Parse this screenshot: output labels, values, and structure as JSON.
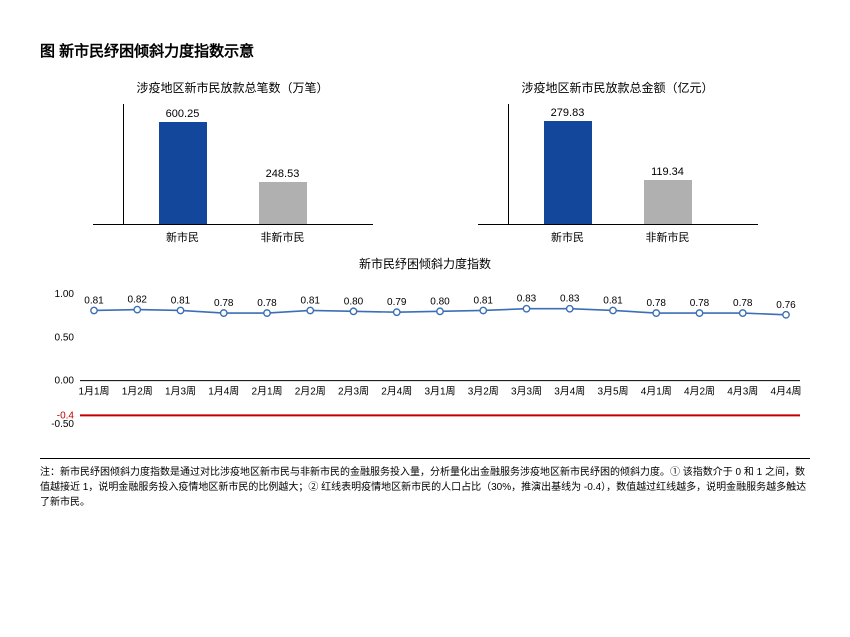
{
  "title": "图 新市民纾困倾斜力度指数示意",
  "barCharts": {
    "left": {
      "title": "涉疫地区新市民放款总笔数（万笔）",
      "max": 650,
      "bars": [
        {
          "label": "新市民",
          "value": 600.25,
          "color": "#12479c"
        },
        {
          "label": "非新市民",
          "value": 248.53,
          "color": "#b0b0b0"
        }
      ]
    },
    "right": {
      "title": "涉疫地区新市民放款总金额（亿元）",
      "max": 300,
      "bars": [
        {
          "label": "新市民",
          "value": 279.83,
          "color": "#12479c"
        },
        {
          "label": "非新市民",
          "value": 119.34,
          "color": "#b0b0b0"
        }
      ]
    }
  },
  "lineChart": {
    "title": "新市民纾困倾斜力度指数",
    "ymin": -0.5,
    "ymax": 1.0,
    "yticks": [
      -0.5,
      0.0,
      0.5,
      1.0
    ],
    "ytickLabels": [
      "-0.50",
      "0.00",
      "0.50",
      "1.00"
    ],
    "baseline": -0.4,
    "baselineColor": "#c00000",
    "lineColor": "#3a6fb7",
    "markerColor": "#3a6fb7",
    "markerFill": "#ffffff",
    "axisColor": "#000000",
    "valueFontSize": 10,
    "axisFontSize": 10,
    "categories": [
      "1月1周",
      "1月2周",
      "1月3周",
      "1月4周",
      "2月1周",
      "2月2周",
      "2月3周",
      "2月4周",
      "3月1周",
      "3月2周",
      "3月3周",
      "3月4周",
      "3月5周",
      "4月1周",
      "4月2周",
      "4月3周",
      "4月4周"
    ],
    "values": [
      0.81,
      0.82,
      0.81,
      0.78,
      0.78,
      0.81,
      0.8,
      0.79,
      0.8,
      0.81,
      0.83,
      0.83,
      0.81,
      0.78,
      0.78,
      0.78,
      0.76
    ]
  },
  "footnote": "注：新市民纾困倾斜力度指数是通过对比涉疫地区新市民与非新市民的金融服务投入量，分析量化出金融服务涉疫地区新市民纾困的倾斜力度。① 该指数介于 0 和 1 之间，数值越接近 1，说明金融服务投入疫情地区新市民的比例越大；② 红线表明疫情地区新市民的人口占比（30%，推演出基线为 -0.4），数值越过红线越多，说明金融服务越多触达了新市民。",
  "colors": {
    "background": "#ffffff",
    "text": "#000000"
  }
}
